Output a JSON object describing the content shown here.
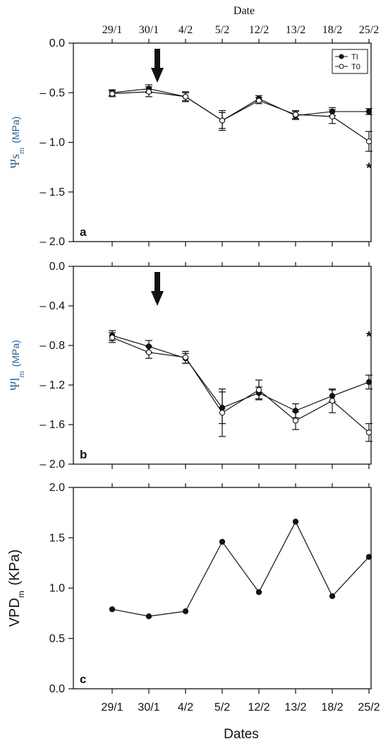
{
  "top_axis_title": "Date",
  "bottom_axis_title": "Dates",
  "categories": [
    "29/1",
    "30/1",
    "4/2",
    "5/2",
    "12/2",
    "13/2",
    "18/2",
    "25/2"
  ],
  "legend": {
    "ti": "TI",
    "t0": "T0"
  },
  "chart_data": [
    {
      "type": "line",
      "panel_label": "a",
      "ylabel": {
        "symbol": "Ψs",
        "sub": "m",
        "unit": "(MPa)"
      },
      "ylim": [
        -2.0,
        0.0
      ],
      "yticks": [
        0.0,
        -0.5,
        -1.0,
        -1.5,
        -2.0
      ],
      "ytick_labels": [
        "0.0",
        "– 0.5",
        "– 1.0",
        "– 1.5",
        "– 2.0"
      ],
      "legend_position": "top-right",
      "series": [
        {
          "name": "TI",
          "marker": "filled",
          "values": [
            -0.5,
            -0.46,
            -0.54,
            -0.78,
            -0.56,
            -0.73,
            -0.69,
            -0.69
          ],
          "errors": [
            0.03,
            0.04,
            0.05,
            0.1,
            0.03,
            0.04,
            0.04,
            0.03
          ]
        },
        {
          "name": "T0",
          "marker": "open",
          "values": [
            -0.51,
            -0.49,
            -0.54,
            -0.78,
            -0.58,
            -0.72,
            -0.74,
            -0.99
          ],
          "errors": [
            0.03,
            0.05,
            0.04,
            0.08,
            0.03,
            0.04,
            0.07,
            0.1
          ]
        }
      ],
      "annotations": [
        {
          "text": "*",
          "x": "25/2",
          "y": -1.25
        }
      ],
      "arrow_at": "30/1"
    },
    {
      "type": "line",
      "panel_label": "b",
      "ylabel": {
        "symbol": "Ψl",
        "sub": "m",
        "unit": "(MPa)"
      },
      "ylim": [
        -2.0,
        0.0
      ],
      "yticks": [
        0.0,
        -0.4,
        -0.8,
        -1.2,
        -1.6,
        -2.0
      ],
      "ytick_labels": [
        "0.0",
        "– 0.4",
        "– 0.8",
        "– 1.2",
        "– 1.6",
        "– 2.0"
      ],
      "series": [
        {
          "name": "TI",
          "marker": "filled",
          "values": [
            -0.7,
            -0.81,
            -0.93,
            -1.43,
            -1.28,
            -1.46,
            -1.31,
            -1.17
          ],
          "errors": [
            0.05,
            0.06,
            0.05,
            0.16,
            0.06,
            0.07,
            0.06,
            0.07
          ]
        },
        {
          "name": "T0",
          "marker": "open",
          "values": [
            -0.72,
            -0.87,
            -0.92,
            -1.48,
            -1.25,
            -1.56,
            -1.36,
            -1.68
          ],
          "errors": [
            0.05,
            0.06,
            0.06,
            0.24,
            0.1,
            0.09,
            0.12,
            0.09
          ]
        }
      ],
      "annotations": [
        {
          "text": "*",
          "x": "25/2",
          "y": -0.7
        }
      ],
      "arrow_at": "30/1"
    },
    {
      "type": "line",
      "panel_label": "c",
      "ylabel": {
        "symbol": "VPD",
        "sub": "m",
        "unit": " (KPa)"
      },
      "ylim": [
        0.0,
        2.0
      ],
      "yticks": [
        2.0,
        1.5,
        1.0,
        0.5,
        0.0
      ],
      "ytick_labels": [
        "2.0",
        "1.5",
        "1.0",
        "0.5",
        "0.0"
      ],
      "series": [
        {
          "name": "",
          "marker": "filled",
          "values": [
            0.79,
            0.72,
            0.77,
            1.46,
            0.96,
            1.66,
            0.92,
            1.31
          ]
        }
      ]
    }
  ],
  "colors": {
    "axis": "#111111",
    "ylabel_blue": "#2f5f8f"
  }
}
